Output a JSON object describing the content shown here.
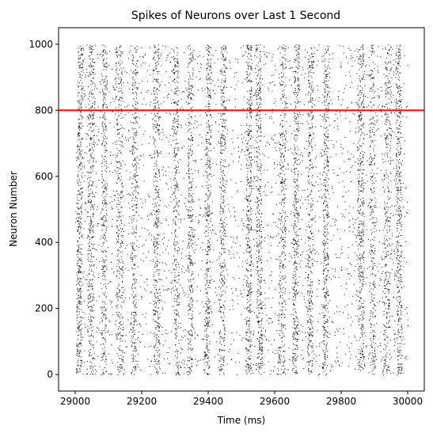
{
  "chart_data": {
    "type": "scatter",
    "title": "Spikes of Neurons over Last 1 Second",
    "xlabel": "Time (ms)",
    "ylabel": "Neuron Number",
    "xlim": [
      28950,
      30050
    ],
    "ylim": [
      -50,
      1050
    ],
    "xticks": [
      29000,
      29200,
      29400,
      29600,
      29800,
      30000
    ],
    "yticks": [
      0,
      200,
      400,
      600,
      800,
      1000
    ],
    "grid": false,
    "marker_color": "#000000",
    "reference_line": {
      "orientation": "horizontal",
      "y": 800,
      "color": "#ff0000"
    },
    "series": [
      {
        "neuron_range": [
          0,
          999
        ],
        "time_range": [
          29000,
          30000
        ],
        "bursts": [
          {
            "t": 29010,
            "w": 8,
            "strength": 1.0
          },
          {
            "t": 29045,
            "w": 10,
            "strength": 0.9
          },
          {
            "t": 29085,
            "w": 8,
            "strength": 0.7
          },
          {
            "t": 29135,
            "w": 10,
            "strength": 0.8
          },
          {
            "t": 29175,
            "w": 8,
            "strength": 0.7
          },
          {
            "t": 29245,
            "w": 10,
            "strength": 0.9
          },
          {
            "t": 29305,
            "w": 8,
            "strength": 0.7
          },
          {
            "t": 29345,
            "w": 8,
            "strength": 0.8
          },
          {
            "t": 29395,
            "w": 8,
            "strength": 0.9
          },
          {
            "t": 29440,
            "w": 8,
            "strength": 0.8
          },
          {
            "t": 29520,
            "w": 8,
            "strength": 1.0
          },
          {
            "t": 29555,
            "w": 8,
            "strength": 0.9
          },
          {
            "t": 29620,
            "w": 10,
            "strength": 0.8
          },
          {
            "t": 29660,
            "w": 8,
            "strength": 0.9
          },
          {
            "t": 29705,
            "w": 8,
            "strength": 0.8
          },
          {
            "t": 29750,
            "w": 8,
            "strength": 0.9
          },
          {
            "t": 29860,
            "w": 10,
            "strength": 1.0
          },
          {
            "t": 29895,
            "w": 8,
            "strength": 0.6
          },
          {
            "t": 29935,
            "w": 10,
            "strength": 0.7
          },
          {
            "t": 29975,
            "w": 8,
            "strength": 0.9
          }
        ],
        "background_rate_hz": 5
      }
    ]
  }
}
